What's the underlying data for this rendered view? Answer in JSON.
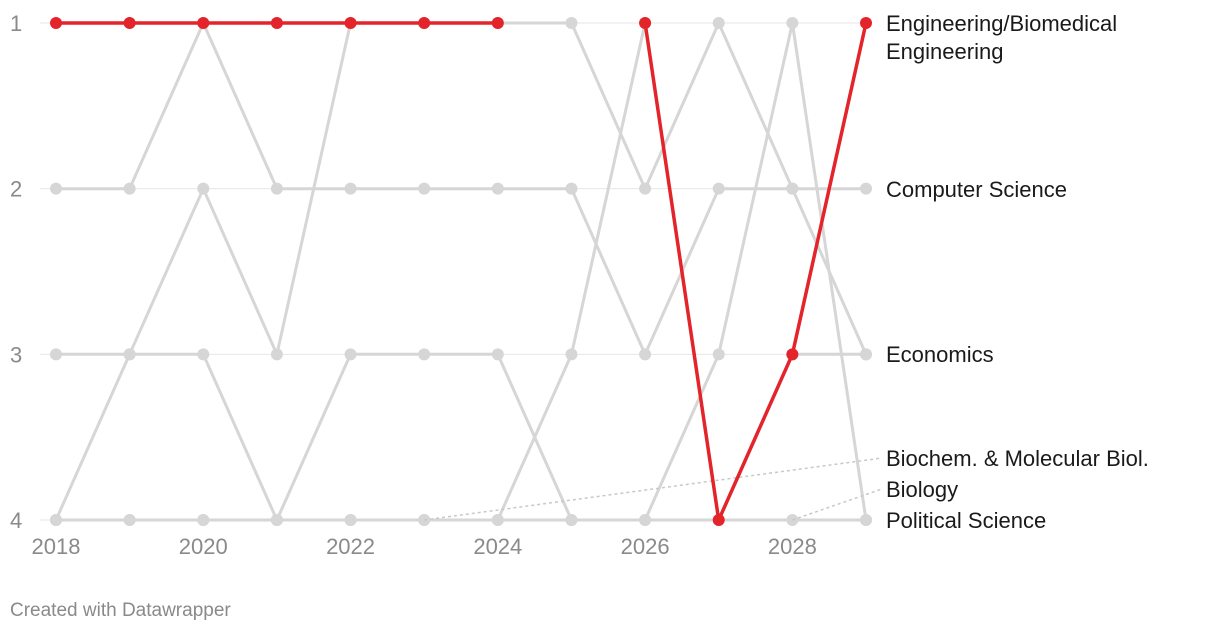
{
  "chart_data": {
    "type": "line",
    "chart_subtype": "bump",
    "x_ticks": [
      "2018",
      "2020",
      "2022",
      "2024",
      "2026",
      "2028"
    ],
    "y_ticks": [
      "1",
      "2",
      "3",
      "4"
    ],
    "xlim": [
      2018,
      2029
    ],
    "ylim": [
      1,
      4
    ],
    "grid": true,
    "series": [
      {
        "name": "Computer Science",
        "color": "#d6d6d6",
        "highlight": false,
        "points": [
          [
            2018,
            2
          ],
          [
            2019,
            2
          ],
          [
            2020,
            1
          ],
          [
            2021,
            2
          ],
          [
            2022,
            2
          ],
          [
            2023,
            2
          ],
          [
            2024,
            2
          ],
          [
            2025,
            2
          ],
          [
            2026,
            3
          ],
          [
            2027,
            2
          ],
          [
            2028,
            2
          ],
          [
            2029,
            2
          ]
        ]
      },
      {
        "name": "Economics",
        "color": "#d6d6d6",
        "highlight": false,
        "points": [
          [
            2018,
            3
          ],
          [
            2019,
            3
          ],
          [
            2020,
            2
          ],
          [
            2021,
            3
          ],
          [
            2022,
            1
          ],
          [
            2023,
            1
          ],
          [
            2024,
            1
          ],
          [
            2025,
            1
          ],
          [
            2026,
            2
          ],
          [
            2027,
            1
          ],
          [
            2028,
            2
          ],
          [
            2029,
            3
          ]
        ]
      },
      {
        "name": "Political Science",
        "color": "#d6d6d6",
        "highlight": false,
        "points": [
          [
            2018,
            4
          ],
          [
            2019,
            4
          ],
          [
            2020,
            4
          ],
          [
            2021,
            4
          ],
          [
            2022,
            3
          ],
          [
            2023,
            3
          ],
          [
            2024,
            3
          ],
          [
            2025,
            4
          ],
          [
            2026,
            4
          ],
          [
            2027,
            3
          ],
          [
            2028,
            1
          ],
          [
            2029,
            4
          ]
        ]
      },
      {
        "name": "Biochem. & Molecular Biol.",
        "color": "#d6d6d6",
        "highlight": false,
        "points": [
          [
            2018,
            4
          ],
          [
            2019,
            3
          ],
          [
            2020,
            3
          ],
          [
            2021,
            4
          ],
          [
            2022,
            4
          ],
          [
            2023,
            4
          ],
          [
            2024,
            4
          ],
          [
            2025,
            3
          ],
          [
            2026,
            1
          ],
          [
            2027,
            4
          ],
          [
            2028,
            3
          ],
          [
            2029,
            3
          ]
        ]
      },
      {
        "name": "Biology",
        "color": "#d6d6d6",
        "highlight": false,
        "points": [
          [
            2018,
            4
          ],
          [
            2019,
            4
          ],
          [
            2020,
            4
          ],
          [
            2021,
            4
          ],
          [
            2022,
            4
          ],
          [
            2023,
            4
          ],
          [
            2024,
            4
          ],
          [
            2025,
            4
          ],
          [
            2026,
            4
          ],
          [
            2027,
            4
          ],
          [
            2028,
            4
          ],
          [
            2029,
            4
          ]
        ]
      },
      {
        "name": "Engineering/Biomedical Engineering",
        "color": "#e3242b",
        "highlight": true,
        "points": [
          [
            2018,
            1
          ],
          [
            2019,
            1
          ],
          [
            2020,
            1
          ],
          [
            2021,
            1
          ],
          [
            2022,
            1
          ],
          [
            2023,
            1
          ],
          [
            2024,
            1
          ],
          [
            2026,
            1
          ],
          [
            2027,
            4
          ],
          [
            2028,
            3
          ],
          [
            2029,
            1
          ]
        ]
      }
    ],
    "labels": [
      {
        "lines": [
          "Engineering/Biomedical",
          "Engineering"
        ],
        "rank": 1
      },
      {
        "lines": [
          "Computer Science"
        ],
        "rank": 2
      },
      {
        "lines": [
          "Economics"
        ],
        "rank": 3
      },
      {
        "lines": [
          "Biochem. & Molecular Biol."
        ],
        "rank": 4,
        "leader_from": [
          2023,
          4
        ]
      },
      {
        "lines": [
          "Biology"
        ],
        "rank": 4,
        "leader_from": [
          2028,
          4
        ]
      },
      {
        "lines": [
          "Political Science"
        ],
        "rank": 4
      }
    ]
  },
  "footer": {
    "credit": "Created with Datawrapper"
  }
}
